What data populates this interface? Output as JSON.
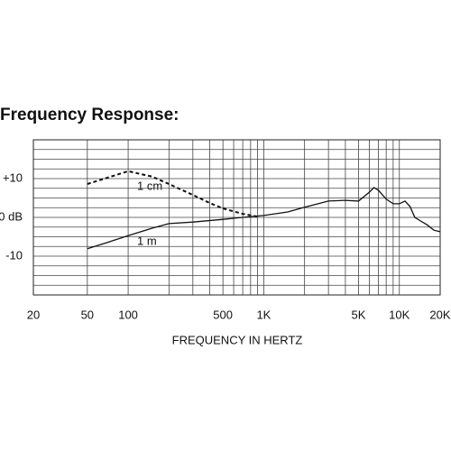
{
  "chart_data": {
    "type": "line",
    "title": "Frequency Response:",
    "x_label": "FREQUENCY IN HERTZ",
    "log_x": true,
    "xlim": [
      20,
      20000
    ],
    "ylim": [
      -20,
      20
    ],
    "xticks": [
      20,
      50,
      100,
      500,
      {
        "value": 1000,
        "label": "1K"
      },
      {
        "value": 5000,
        "label": "5K"
      },
      {
        "value": 10000,
        "label": "10K"
      },
      {
        "value": 20000,
        "label": "20K"
      }
    ],
    "xgrid": [
      50,
      100,
      200,
      300,
      400,
      500,
      600,
      700,
      800,
      900,
      1000,
      2000,
      3000,
      4000,
      5000,
      6000,
      7000,
      8000,
      9000,
      10000
    ],
    "yticks": [
      {
        "value": 10,
        "label": "+10"
      },
      {
        "value": 0,
        "label": "0 dB"
      },
      -10
    ],
    "ygrid": [
      -17.5,
      -15,
      -12.5,
      -10,
      -7.5,
      -5,
      -2.5,
      0,
      2.5,
      5,
      7.5,
      10,
      12.5,
      15,
      17.5
    ],
    "grid": true,
    "series": [
      {
        "name": "1 cm",
        "color": "#111111",
        "dashed": true,
        "x": [
          50,
          70,
          100,
          150,
          200,
          300,
          400,
          500,
          700,
          900
        ],
        "values": [
          8.6,
          10.2,
          11.9,
          10.5,
          8.6,
          5.8,
          3.7,
          2.3,
          0.9,
          0.2
        ]
      },
      {
        "name": "1 m",
        "color": "#111111",
        "dashed": false,
        "x": [
          50,
          70,
          100,
          150,
          200,
          300,
          500,
          700,
          1000,
          1500,
          2000,
          3000,
          4000,
          5000,
          6000,
          6500,
          7000,
          8000,
          9000,
          10000,
          11000,
          12000,
          13000,
          14000,
          16000,
          18000,
          20000
        ],
        "values": [
          -8.1,
          -6.5,
          -4.7,
          -2.8,
          -1.6,
          -1.2,
          -0.5,
          0,
          0.5,
          1.4,
          2.6,
          4.2,
          4.4,
          4.2,
          6.5,
          7.7,
          7,
          4.7,
          3.5,
          3.5,
          4.2,
          2.8,
          0,
          -0.7,
          -1.9,
          -3.3,
          -3.7
        ]
      }
    ]
  }
}
